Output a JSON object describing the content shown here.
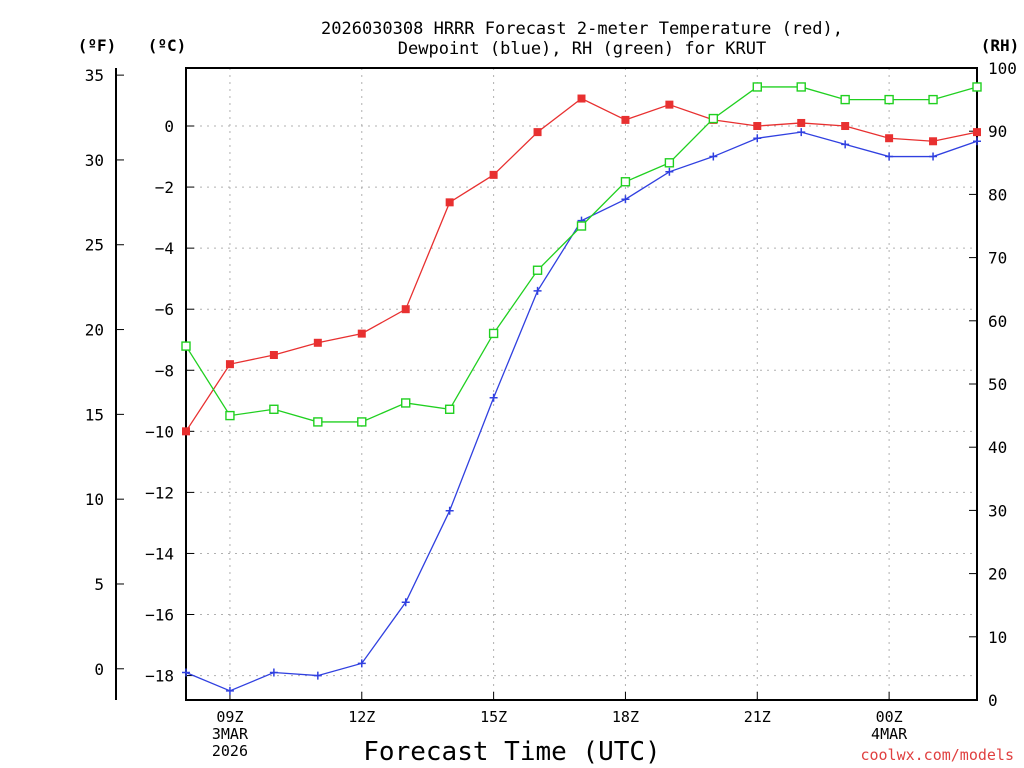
{
  "chart_data": {
    "type": "line",
    "title_lines": [
      "2026030308 HRRR Forecast 2-meter Temperature (red),",
      "Dewpoint (blue), RH (green) for KRUT"
    ],
    "xlabel": "Forecast Time (UTC)",
    "credit": "coolwx.com/models",
    "units": {
      "fahrenheit": "(ºF)",
      "celsius": "(ºC)",
      "rh": "(RH)"
    },
    "x_hours": [
      8,
      9,
      10,
      11,
      12,
      13,
      14,
      15,
      16,
      17,
      18,
      19,
      20,
      21,
      22,
      23,
      24,
      25,
      26
    ],
    "xlim": [
      8,
      26
    ],
    "x_ticks": [
      {
        "hour": 9,
        "lines": [
          "09Z",
          "3MAR",
          "2026"
        ]
      },
      {
        "hour": 12,
        "lines": [
          "12Z"
        ]
      },
      {
        "hour": 15,
        "lines": [
          "15Z"
        ]
      },
      {
        "hour": 18,
        "lines": [
          "18Z"
        ]
      },
      {
        "hour": 21,
        "lines": [
          "21Z"
        ]
      },
      {
        "hour": 24,
        "lines": [
          "00Z",
          "4MAR"
        ]
      }
    ],
    "celsius_axis": {
      "ylim": [
        -18.8,
        1.9
      ],
      "ticks": [
        0,
        -2,
        -4,
        -6,
        -8,
        -10,
        -12,
        -14,
        -16,
        -18
      ]
    },
    "fahrenheit_axis": {
      "ticks": [
        35,
        30,
        25,
        20,
        15,
        10,
        5,
        0
      ]
    },
    "rh_axis": {
      "ylim": [
        0,
        100
      ],
      "ticks": [
        100,
        90,
        80,
        70,
        60,
        50,
        40,
        30,
        20,
        10,
        0
      ]
    },
    "series": [
      {
        "name": "Temperature",
        "unit": "C",
        "color": "#e83030",
        "marker": "filled-square",
        "values": [
          -10.0,
          -7.8,
          -7.5,
          -7.1,
          -6.8,
          -6.0,
          -2.5,
          -1.6,
          -0.2,
          0.9,
          0.2,
          0.7,
          0.2,
          0.0,
          0.1,
          0.0,
          -0.4,
          -0.5,
          -0.2
        ]
      },
      {
        "name": "Dewpoint",
        "unit": "C",
        "color": "#3040e0",
        "marker": "plus",
        "values": [
          -17.9,
          -18.5,
          -17.9,
          -18.0,
          -17.6,
          -15.6,
          -12.6,
          -8.9,
          -5.4,
          -3.1,
          -2.4,
          -1.5,
          -1.0,
          -0.4,
          -0.2,
          -0.6,
          -1.0,
          -1.0,
          -0.5
        ]
      },
      {
        "name": "RH",
        "unit": "%",
        "color": "#20d020",
        "marker": "open-square",
        "values": [
          56,
          45,
          46,
          44,
          44,
          47,
          46,
          58,
          68,
          75,
          82,
          85,
          92,
          97,
          97,
          95,
          95,
          95,
          97
        ]
      }
    ]
  }
}
